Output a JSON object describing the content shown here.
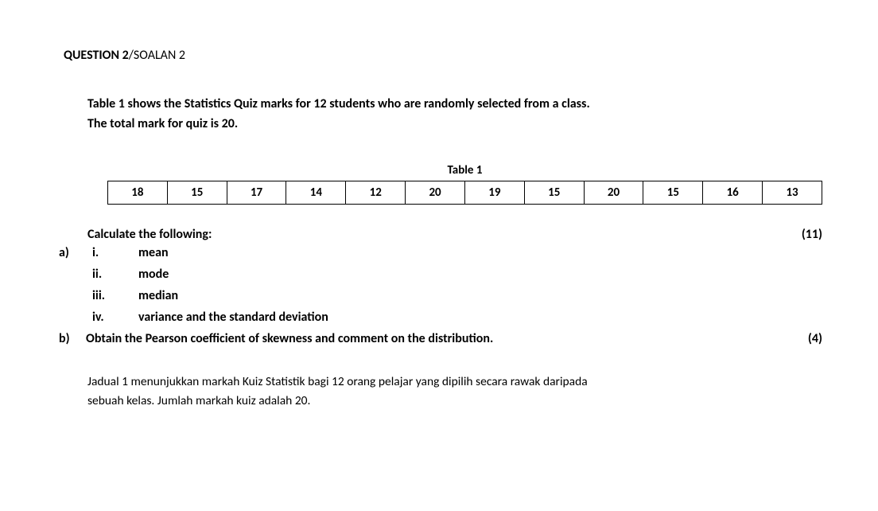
{
  "heading": {
    "bold": "QUESTION 2",
    "light": "/SOALAN 2"
  },
  "intro_line1": "Table 1 shows the Statistics Quiz marks for 12 students who are randomly selected from a class.",
  "intro_line2": "The total mark for quiz is 20.",
  "table": {
    "caption": "Table 1",
    "cells": [
      "18",
      "15",
      "17",
      "14",
      "12",
      "20",
      "19",
      "15",
      "20",
      "15",
      "16",
      "13"
    ]
  },
  "calc_label": "Calculate the following:",
  "marks_a": "(11)",
  "part_a": "a)",
  "items": {
    "i": {
      "num": "i.",
      "text": "mean"
    },
    "ii": {
      "num": "ii.",
      "text": "mode"
    },
    "iii": {
      "num": "iii.",
      "text": "median"
    },
    "iv": {
      "num": "iv.",
      "text": "variance and the standard deviation"
    }
  },
  "part_b": "b)",
  "b_text": "Obtain the Pearson coefficient of skewness and comment on the distribution.",
  "marks_b": "(4)",
  "malay_line1": "Jadual 1 menunjukkan markah Kuiz Statistik bagi 12 orang pelajar yang dipilih secara rawak daripada",
  "malay_line2": "sebuah kelas. Jumlah markah kuiz adalah 20."
}
